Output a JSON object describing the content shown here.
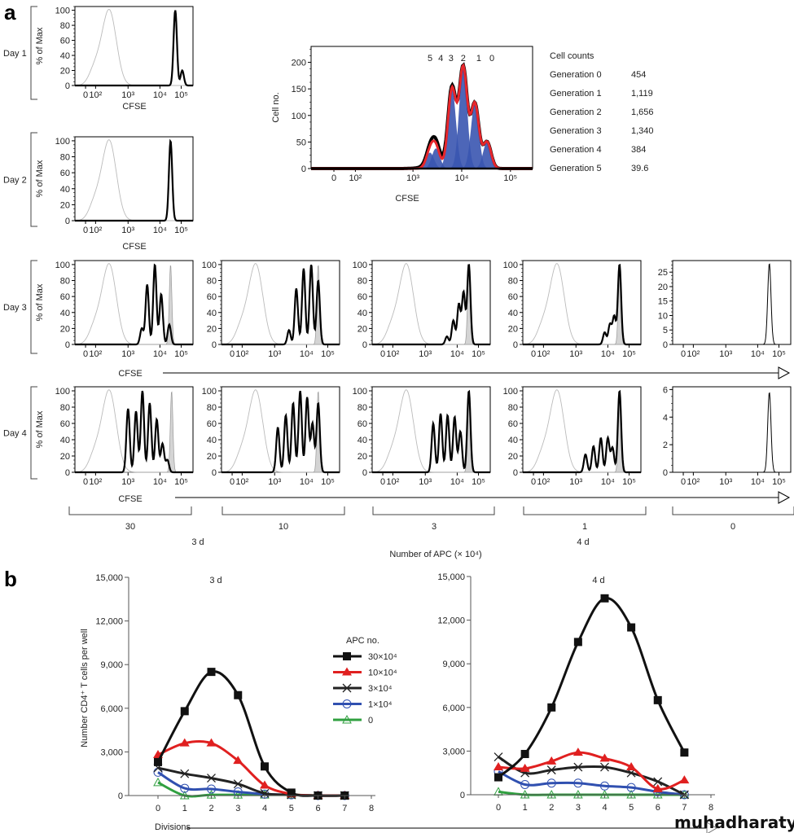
{
  "panel_a": {
    "label": "a",
    "row_labels": [
      "Day 1",
      "Day 2",
      "Day 3",
      "Day 4"
    ],
    "cfse_label": "CFSE",
    "apc_groups": [
      "30",
      "10",
      "3",
      "1",
      "0"
    ],
    "day_labels": [
      "3 d",
      "4 d"
    ],
    "apc_axis_label": "Number of APC (× 10⁴)",
    "cell_counts": {
      "title": "Cell counts",
      "rows": [
        {
          "generation": "Generation 0",
          "count": "454"
        },
        {
          "generation": "Generation 1",
          "count": "1,119"
        },
        {
          "generation": "Generation 2",
          "count": "1,656"
        },
        {
          "generation": "Generation 3",
          "count": "1,340"
        },
        {
          "generation": "Generation 4",
          "count": "384"
        },
        {
          "generation": "Generation 5",
          "count": "39.6"
        }
      ]
    }
  },
  "panel_b": {
    "label": "b",
    "xlabel": "Divisions",
    "ylabel": "Number CD4⁺ T cells per well",
    "legend_title": "APC no."
  },
  "watermark": "muhadharaty.com",
  "colors": {
    "apc30": "#111111",
    "apc10": "#e02020",
    "apc3": "#222222",
    "apc1": "#3050b0",
    "apc0": "#30a040",
    "unstained": "#bbbbbb",
    "undivided_fill": "#d4d4d4",
    "fit": "#e8262b",
    "generation_fill": "#3a55b0"
  },
  "chart_data": [
    {
      "id": "day1",
      "type": "area",
      "ylabel": "% of Max",
      "xlabel": "CFSE",
      "ylim": [
        0,
        105
      ],
      "yticks": [
        0,
        20,
        40,
        60,
        80,
        100
      ],
      "xticks": [
        {
          "label": "0",
          "value": 0
        },
        {
          "label": "10²",
          "value": 100
        },
        {
          "label": "10³",
          "value": 1000
        },
        {
          "label": "10⁴",
          "value": 10000
        },
        {
          "label": "10⁵",
          "value": 100000
        }
      ],
      "unstained_peak": {
        "log10_cfse": 2.42,
        "pct": 100
      },
      "peaks": [
        {
          "log10_cfse": 4.72,
          "pct": 100
        },
        {
          "log10_cfse": 5.05,
          "pct": 20
        }
      ]
    },
    {
      "id": "day2",
      "type": "area",
      "ylabel": "% of Max",
      "xlabel": "CFSE",
      "ylim": [
        0,
        105
      ],
      "yticks": [
        0,
        20,
        40,
        60,
        80,
        100
      ],
      "xticks": [
        {
          "label": "0",
          "value": 0
        },
        {
          "label": "10²",
          "value": 100
        },
        {
          "label": "10³",
          "value": 1000
        },
        {
          "label": "10⁴",
          "value": 10000
        },
        {
          "label": "10⁵",
          "value": 100000
        }
      ],
      "unstained_peak": {
        "log10_cfse": 2.42,
        "pct": 100
      },
      "peaks": [
        {
          "log10_cfse": 4.5,
          "pct": 100
        }
      ]
    },
    {
      "id": "day3_apc30",
      "type": "area",
      "ylabel": "% of Max",
      "xlabel": "CFSE",
      "ylim": [
        0,
        105
      ],
      "yticks": [
        0,
        20,
        40,
        60,
        80,
        100
      ],
      "xticks": [
        {
          "label": "0",
          "value": 0
        },
        {
          "label": "10²",
          "value": 100
        },
        {
          "label": "10³",
          "value": 1000
        },
        {
          "label": "10⁴",
          "value": 10000
        },
        {
          "label": "10⁵",
          "value": 100000
        }
      ],
      "unstained_peak": {
        "log10_cfse": 2.42,
        "pct": 100
      },
      "undivided_peak": {
        "log10_cfse": 4.5,
        "pct": 100
      },
      "peaks": [
        {
          "log10_cfse": 3.43,
          "pct": 20
        },
        {
          "log10_cfse": 3.6,
          "pct": 75
        },
        {
          "log10_cfse": 3.84,
          "pct": 100
        },
        {
          "log10_cfse": 4.06,
          "pct": 63
        },
        {
          "log10_cfse": 4.44,
          "pct": 25
        }
      ]
    },
    {
      "id": "day3_apc10",
      "type": "area",
      "ylim": [
        0,
        105
      ],
      "yticks": [
        0,
        20,
        40,
        60,
        80,
        100
      ],
      "xticks": [
        {
          "label": "0",
          "value": 0
        },
        {
          "label": "10²",
          "value": 100
        },
        {
          "label": "10³",
          "value": 1000
        },
        {
          "label": "10⁴",
          "value": 10000
        },
        {
          "label": "10⁵",
          "value": 100000
        }
      ],
      "unstained_peak": {
        "log10_cfse": 2.42,
        "pct": 100
      },
      "undivided_peak": {
        "log10_cfse": 4.55,
        "pct": 100
      },
      "peaks": [
        {
          "log10_cfse": 3.45,
          "pct": 18
        },
        {
          "log10_cfse": 3.68,
          "pct": 70
        },
        {
          "log10_cfse": 3.91,
          "pct": 95
        },
        {
          "log10_cfse": 4.22,
          "pct": 100
        },
        {
          "log10_cfse": 4.55,
          "pct": 80
        }
      ]
    },
    {
      "id": "day3_apc3",
      "type": "area",
      "ylim": [
        0,
        105
      ],
      "yticks": [
        0,
        20,
        40,
        60,
        80,
        100
      ],
      "xticks": [
        {
          "label": "0",
          "value": 0
        },
        {
          "label": "10²",
          "value": 100
        },
        {
          "label": "10³",
          "value": 1000
        },
        {
          "label": "10⁴",
          "value": 10000
        },
        {
          "label": "10⁵",
          "value": 100000
        }
      ],
      "unstained_peak": {
        "log10_cfse": 2.42,
        "pct": 100
      },
      "undivided_peak": {
        "log10_cfse": 4.55,
        "pct": 100
      },
      "peaks": [
        {
          "log10_cfse": 3.68,
          "pct": 10
        },
        {
          "log10_cfse": 3.88,
          "pct": 30
        },
        {
          "log10_cfse": 4.08,
          "pct": 50
        },
        {
          "log10_cfse": 4.3,
          "pct": 65
        },
        {
          "log10_cfse": 4.55,
          "pct": 100
        }
      ]
    },
    {
      "id": "day3_apc1",
      "type": "area",
      "ylim": [
        0,
        105
      ],
      "yticks": [
        0,
        20,
        40,
        60,
        80,
        100
      ],
      "xticks": [
        {
          "label": "0",
          "value": 0
        },
        {
          "label": "10²",
          "value": 100
        },
        {
          "label": "10³",
          "value": 1000
        },
        {
          "label": "10⁴",
          "value": 10000
        },
        {
          "label": "10⁵",
          "value": 100000
        }
      ],
      "unstained_peak": {
        "log10_cfse": 2.42,
        "pct": 100
      },
      "undivided_peak": {
        "log10_cfse": 4.55,
        "pct": 100
      },
      "peaks": [
        {
          "log10_cfse": 3.9,
          "pct": 15
        },
        {
          "log10_cfse": 4.1,
          "pct": 25
        },
        {
          "log10_cfse": 4.3,
          "pct": 35
        },
        {
          "log10_cfse": 4.55,
          "pct": 100
        }
      ]
    },
    {
      "id": "day3_apc0",
      "type": "area",
      "ylim": [
        0,
        29
      ],
      "yticks": [
        0,
        5,
        10,
        15,
        20,
        25
      ],
      "xticks": [
        {
          "label": "0",
          "value": 0
        },
        {
          "label": "10²",
          "value": 100
        },
        {
          "label": "10³",
          "value": 1000
        },
        {
          "label": "10⁴",
          "value": 10000
        },
        {
          "label": "10⁵",
          "value": 100000
        }
      ],
      "peaks": [
        {
          "log10_cfse": 4.55,
          "pct": 28
        }
      ]
    },
    {
      "id": "day4_apc30",
      "type": "area",
      "ylabel": "% of Max",
      "xlabel": "CFSE",
      "ylim": [
        0,
        105
      ],
      "yticks": [
        0,
        20,
        40,
        60,
        80,
        100
      ],
      "xticks": [
        {
          "label": "0",
          "value": 0
        },
        {
          "label": "10²",
          "value": 100
        },
        {
          "label": "10³",
          "value": 1000
        },
        {
          "label": "10⁴",
          "value": 10000
        },
        {
          "label": "10⁵",
          "value": 100000
        }
      ],
      "unstained_peak": {
        "log10_cfse": 2.42,
        "pct": 100
      },
      "undivided_peak": {
        "log10_cfse": 4.55,
        "pct": 100
      },
      "peaks": [
        {
          "log10_cfse": 3.0,
          "pct": 78
        },
        {
          "log10_cfse": 3.25,
          "pct": 75
        },
        {
          "log10_cfse": 3.45,
          "pct": 100
        },
        {
          "log10_cfse": 3.68,
          "pct": 85
        },
        {
          "log10_cfse": 3.9,
          "pct": 65
        },
        {
          "log10_cfse": 4.12,
          "pct": 35
        },
        {
          "log10_cfse": 4.35,
          "pct": 15
        }
      ]
    },
    {
      "id": "day4_apc10",
      "type": "area",
      "ylim": [
        0,
        105
      ],
      "yticks": [
        0,
        20,
        40,
        60,
        80,
        100
      ],
      "xticks": [
        {
          "label": "0",
          "value": 0
        },
        {
          "label": "10²",
          "value": 100
        },
        {
          "label": "10³",
          "value": 1000
        },
        {
          "label": "10⁴",
          "value": 10000
        },
        {
          "label": "10⁵",
          "value": 100000
        }
      ],
      "unstained_peak": {
        "log10_cfse": 2.42,
        "pct": 100
      },
      "undivided_peak": {
        "log10_cfse": 4.55,
        "pct": 100
      },
      "peaks": [
        {
          "log10_cfse": 3.1,
          "pct": 55
        },
        {
          "log10_cfse": 3.35,
          "pct": 70
        },
        {
          "log10_cfse": 3.58,
          "pct": 85
        },
        {
          "log10_cfse": 3.8,
          "pct": 100
        },
        {
          "log10_cfse": 4.03,
          "pct": 92
        },
        {
          "log10_cfse": 4.28,
          "pct": 60
        },
        {
          "log10_cfse": 4.55,
          "pct": 85
        }
      ]
    },
    {
      "id": "day4_apc3",
      "type": "area",
      "ylim": [
        0,
        105
      ],
      "yticks": [
        0,
        20,
        40,
        60,
        80,
        100
      ],
      "xticks": [
        {
          "label": "0",
          "value": 0
        },
        {
          "label": "10²",
          "value": 100
        },
        {
          "label": "10³",
          "value": 1000
        },
        {
          "label": "10⁴",
          "value": 10000
        },
        {
          "label": "10⁵",
          "value": 100000
        }
      ],
      "unstained_peak": {
        "log10_cfse": 2.42,
        "pct": 100
      },
      "undivided_peak": {
        "log10_cfse": 4.55,
        "pct": 100
      },
      "peaks": [
        {
          "log10_cfse": 3.25,
          "pct": 60
        },
        {
          "log10_cfse": 3.48,
          "pct": 72
        },
        {
          "log10_cfse": 3.7,
          "pct": 70
        },
        {
          "log10_cfse": 3.92,
          "pct": 68
        },
        {
          "log10_cfse": 4.15,
          "pct": 50
        },
        {
          "log10_cfse": 4.55,
          "pct": 100
        }
      ]
    },
    {
      "id": "day4_apc1",
      "type": "area",
      "ylim": [
        0,
        105
      ],
      "yticks": [
        0,
        20,
        40,
        60,
        80,
        100
      ],
      "xticks": [
        {
          "label": "0",
          "value": 0
        },
        {
          "label": "10²",
          "value": 100
        },
        {
          "label": "10³",
          "value": 1000
        },
        {
          "label": "10⁴",
          "value": 10000
        },
        {
          "label": "10⁵",
          "value": 100000
        }
      ],
      "unstained_peak": {
        "log10_cfse": 2.42,
        "pct": 100
      },
      "undivided_peak": {
        "log10_cfse": 4.55,
        "pct": 100
      },
      "peaks": [
        {
          "log10_cfse": 3.3,
          "pct": 22
        },
        {
          "log10_cfse": 3.55,
          "pct": 32
        },
        {
          "log10_cfse": 3.78,
          "pct": 42
        },
        {
          "log10_cfse": 4.0,
          "pct": 42
        },
        {
          "log10_cfse": 4.22,
          "pct": 30
        },
        {
          "log10_cfse": 4.55,
          "pct": 100
        }
      ]
    },
    {
      "id": "day4_apc0",
      "type": "area",
      "ylim": [
        0,
        6.2
      ],
      "yticks": [
        0,
        2,
        4,
        6
      ],
      "xticks": [
        {
          "label": "0",
          "value": 0
        },
        {
          "label": "10²",
          "value": 100
        },
        {
          "label": "10³",
          "value": 1000
        },
        {
          "label": "10⁴",
          "value": 10000
        },
        {
          "label": "10⁵",
          "value": 100000
        }
      ],
      "peaks": [
        {
          "log10_cfse": 4.55,
          "pct": 5.8
        }
      ]
    },
    {
      "id": "generation_fit",
      "type": "area",
      "ylabel": "Cell no.",
      "xlabel": "CFSE",
      "ylim": [
        0,
        230
      ],
      "yticks": [
        0,
        50,
        100,
        150,
        200
      ],
      "xticks": [
        {
          "label": "0",
          "value": 0
        },
        {
          "label": "10²",
          "value": 100
        },
        {
          "label": "10³",
          "value": 1000
        },
        {
          "label": "10⁴",
          "value": 10000
        },
        {
          "label": "10⁵",
          "value": 100000
        }
      ],
      "generation_labels": [
        {
          "label": "5",
          "log10_cfse": 3.35
        },
        {
          "label": "4",
          "log10_cfse": 3.57
        },
        {
          "label": "3",
          "log10_cfse": 3.78
        },
        {
          "label": "2",
          "log10_cfse": 4.03
        },
        {
          "label": "1",
          "log10_cfse": 4.35
        },
        {
          "label": "0",
          "log10_cfse": 4.62
        }
      ],
      "peaks": [
        {
          "log10_cfse": 3.35,
          "count": 30
        },
        {
          "log10_cfse": 3.47,
          "count": 38
        },
        {
          "log10_cfse": 3.8,
          "count": 150
        },
        {
          "log10_cfse": 4.03,
          "count": 190
        },
        {
          "log10_cfse": 4.27,
          "count": 122
        },
        {
          "log10_cfse": 4.52,
          "count": 50
        }
      ]
    },
    {
      "id": "b_3d",
      "type": "line",
      "title": "3 d",
      "xlim": [
        0,
        8
      ],
      "ylim": [
        0,
        15000
      ],
      "xticks": [
        0,
        1,
        2,
        3,
        4,
        5,
        6,
        7,
        8
      ],
      "yticks": [
        "0",
        "3,000",
        "6,000",
        "9,000",
        "12,000",
        "15,000"
      ],
      "ytick_values": [
        0,
        3000,
        6000,
        9000,
        12000,
        15000
      ],
      "x": [
        0,
        1,
        2,
        3,
        4,
        5,
        6,
        7
      ],
      "series": [
        {
          "name": "30×10⁴",
          "color": "#111111",
          "marker": "square",
          "values": [
            2300,
            5800,
            8500,
            6900,
            2000,
            200,
            0,
            0
          ]
        },
        {
          "name": "10×10⁴",
          "color": "#e02020",
          "marker": "triangle",
          "values": [
            2800,
            3600,
            3600,
            2400,
            700,
            100,
            0,
            0
          ]
        },
        {
          "name": "3×10⁴",
          "color": "#222222",
          "marker": "x",
          "values": [
            1900,
            1500,
            1200,
            800,
            150,
            50,
            0,
            0
          ]
        },
        {
          "name": "1×10⁴",
          "color": "#3050b0",
          "marker": "open-circle",
          "values": [
            1600,
            500,
            450,
            250,
            100,
            50,
            0,
            0
          ]
        },
        {
          "name": "0",
          "color": "#30a040",
          "marker": "open-triangle",
          "values": [
            900,
            0,
            50,
            50,
            50,
            50,
            0,
            0
          ]
        }
      ]
    },
    {
      "id": "b_4d",
      "type": "line",
      "title": "4 d",
      "xlim": [
        0,
        8
      ],
      "ylim": [
        0,
        15000
      ],
      "xticks": [
        0,
        1,
        2,
        3,
        4,
        5,
        6,
        7,
        8
      ],
      "yticks": [
        "0",
        "3,000",
        "6,000",
        "9,000",
        "12,000",
        "15,000"
      ],
      "ytick_values": [
        0,
        3000,
        6000,
        9000,
        12000,
        15000
      ],
      "x": [
        0,
        1,
        2,
        3,
        4,
        5,
        6,
        7
      ],
      "series": [
        {
          "name": "30×10⁴",
          "color": "#111111",
          "marker": "square",
          "values": [
            1200,
            2800,
            6000,
            10500,
            13500,
            11500,
            6500,
            2900
          ]
        },
        {
          "name": "10×10⁴",
          "color": "#e02020",
          "marker": "triangle",
          "values": [
            1900,
            1800,
            2300,
            2900,
            2500,
            1900,
            400,
            1000
          ]
        },
        {
          "name": "3×10⁴",
          "color": "#222222",
          "marker": "x",
          "values": [
            2600,
            1500,
            1700,
            1900,
            1900,
            1500,
            900,
            0
          ]
        },
        {
          "name": "1×10⁴",
          "color": "#3050b0",
          "marker": "open-circle",
          "values": [
            1600,
            700,
            800,
            800,
            600,
            500,
            200,
            0
          ]
        },
        {
          "name": "0",
          "color": "#30a040",
          "marker": "open-triangle",
          "values": [
            200,
            0,
            0,
            0,
            0,
            0,
            0,
            0
          ]
        }
      ]
    }
  ]
}
